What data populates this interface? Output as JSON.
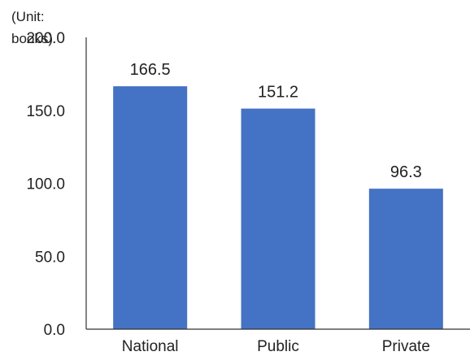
{
  "chart_data": {
    "type": "bar",
    "title": "",
    "unit_label_lines": [
      "(Unit:",
      "books)"
    ],
    "xlabel": "",
    "ylabel": "",
    "categories": [
      "National",
      "Public",
      "Private"
    ],
    "values": [
      166.5,
      151.2,
      96.3
    ],
    "data_labels": [
      "166.5",
      "151.2",
      "96.3"
    ],
    "ylim": [
      0,
      200
    ],
    "yticks": [
      0,
      50,
      100,
      150,
      200
    ],
    "ytick_labels": [
      "0.0",
      "50.0",
      "100.0",
      "150.0",
      "200.0"
    ],
    "grid": false,
    "legend": "none",
    "bar_color": "#4472C4"
  }
}
